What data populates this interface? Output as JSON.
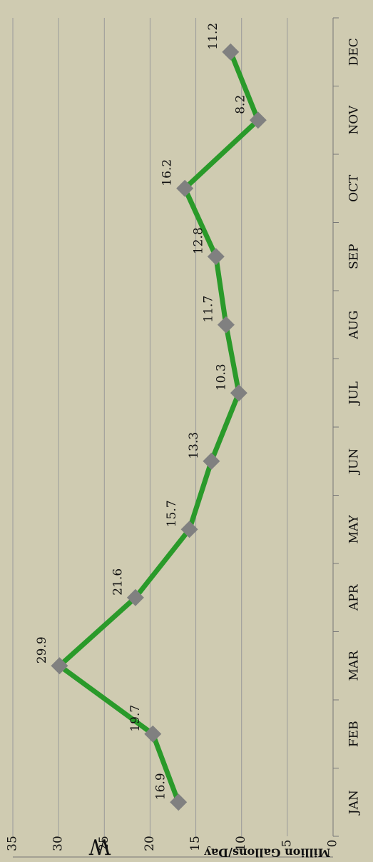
{
  "chart_data": {
    "type": "line",
    "title": "W",
    "y_label": "Million Gallons/Day",
    "categories": [
      "JAN",
      "FEB",
      "MAR",
      "APR",
      "MAY",
      "JUN",
      "JUL",
      "AUG",
      "SEP",
      "OCT",
      "NOV",
      "DEC"
    ],
    "values": [
      16.9,
      19.7,
      29.9,
      21.6,
      15.7,
      13.3,
      10.3,
      11.7,
      12.8,
      16.2,
      8.2,
      11.2
    ],
    "color": "#2a9a2a",
    "marker_color": "#808080",
    "ylim": [
      0,
      35
    ],
    "yticks": [
      0,
      5,
      10,
      15,
      20,
      25,
      30,
      35
    ],
    "grid": true
  }
}
